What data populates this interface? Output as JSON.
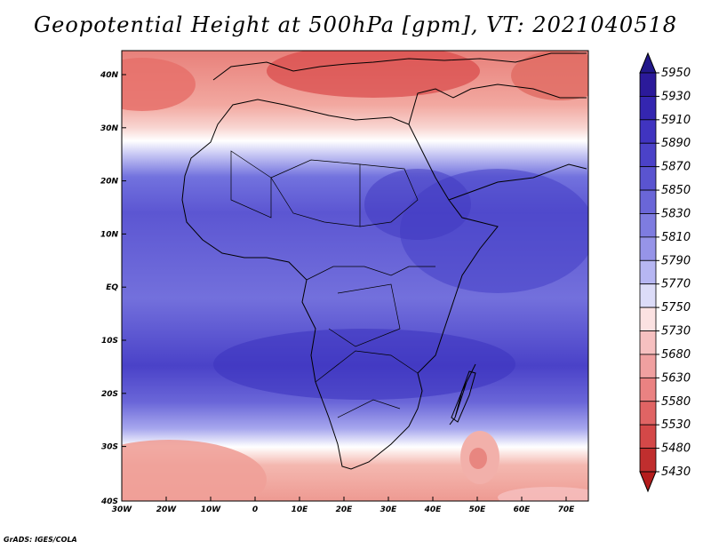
{
  "title": "Geopotential Height at 500hPa [gpm], VT: 2021040518",
  "credit": "GrADS: IGES/COLA",
  "lat_labels": [
    "40N",
    "30N",
    "20N",
    "10N",
    "EQ",
    "10S",
    "20S",
    "30S",
    "40S"
  ],
  "lon_labels": [
    "30W",
    "20W",
    "10W",
    "0",
    "10E",
    "20E",
    "30E",
    "40E",
    "50E",
    "60E",
    "70E"
  ],
  "colorbar": {
    "labels": [
      "5950",
      "5930",
      "5910",
      "5890",
      "5870",
      "5850",
      "5830",
      "5810",
      "5790",
      "5770",
      "5750",
      "5730",
      "5680",
      "5630",
      "5580",
      "5530",
      "5480",
      "5430"
    ],
    "colors": [
      "#2b1a9a",
      "#3426b0",
      "#4034c0",
      "#4b42c8",
      "#5a54d0",
      "#6a66d8",
      "#7e7ce0",
      "#9694e8",
      "#b6b6f2",
      "#dcdcf8",
      "#fbe2e2",
      "#f6c0c0",
      "#f0a0a0",
      "#ea8282",
      "#e06464",
      "#d44848",
      "#c02e2e"
    ],
    "over_color": "#22188a",
    "under_color": "#b41c1c"
  }
}
